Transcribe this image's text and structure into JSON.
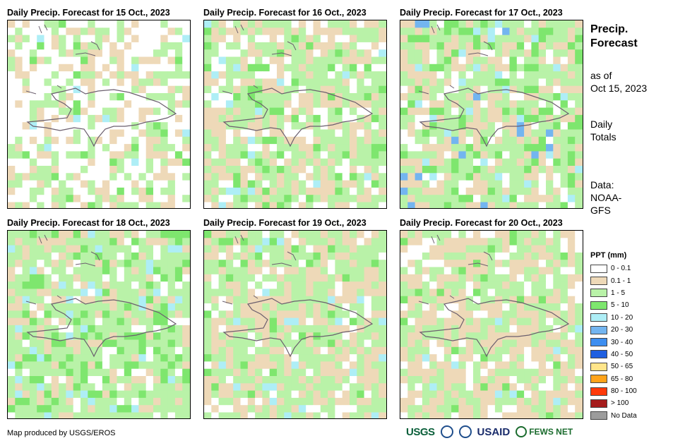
{
  "panels": [
    {
      "title": "Daily Precip. Forecast for 15 Oct., 2023",
      "mix": "p15"
    },
    {
      "title": "Daily Precip. Forecast for 16 Oct., 2023",
      "mix": "p16"
    },
    {
      "title": "Daily Precip. Forecast for 17 Oct., 2023",
      "mix": "p17"
    },
    {
      "title": "Daily Precip. Forecast for 18 Oct., 2023",
      "mix": "p18"
    },
    {
      "title": "Daily Precip. Forecast for 19 Oct., 2023",
      "mix": "p19"
    },
    {
      "title": "Daily Precip. Forecast for 20 Oct., 2023",
      "mix": "p20"
    }
  ],
  "side": {
    "title_line1": "Precip.",
    "title_line2": "Forecast",
    "asof_line1": "as of",
    "asof_line2": "Oct 15, 2023",
    "daily_line1": "Daily",
    "daily_line2": "Totals",
    "data_line1": "Data:",
    "data_line2": "NOAA-",
    "data_line3": "GFS"
  },
  "legend": {
    "title": "PPT (mm)",
    "items": [
      {
        "label": "0 - 0.1",
        "color": "#ffffff"
      },
      {
        "label": "0.1 - 1",
        "color": "#eed9b8"
      },
      {
        "label": "1 - 5",
        "color": "#b9f2a8"
      },
      {
        "label": "5 - 10",
        "color": "#7ee66e"
      },
      {
        "label": "10 - 20",
        "color": "#aeeef6"
      },
      {
        "label": "20 - 30",
        "color": "#73b5f0"
      },
      {
        "label": "30 - 40",
        "color": "#3d8ef0"
      },
      {
        "label": "40 - 50",
        "color": "#1f5fe0"
      },
      {
        "label": "50 - 65",
        "color": "#ffe58a"
      },
      {
        "label": "65 - 80",
        "color": "#ffa31a"
      },
      {
        "label": "80 - 100",
        "color": "#ff3a0a"
      },
      {
        "label": "> 100",
        "color": "#a51c1c"
      },
      {
        "label": "No Data",
        "color": "#9c9c9c"
      }
    ]
  },
  "credit": "Map produced by USGS/EROS",
  "logos": {
    "usgs": "USGS",
    "usaid": "USAID",
    "fews": "FEWS NET"
  }
}
